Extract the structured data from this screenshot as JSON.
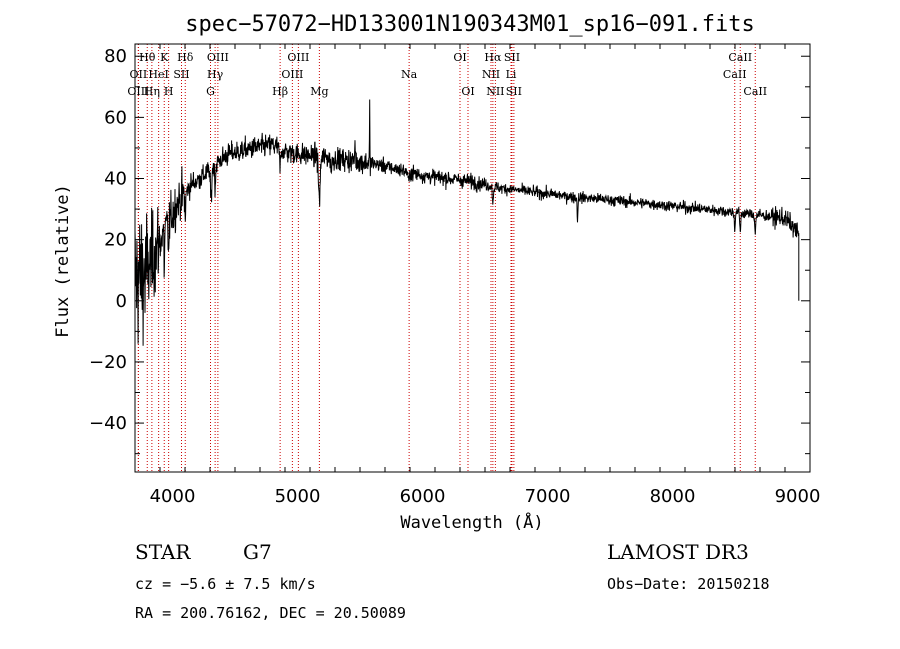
{
  "chart_data": {
    "type": "line",
    "title": "spec−57072−HD133001N190343M01_sp16−091.fits",
    "xlabel": "Wavelength (Å)",
    "ylabel": "Flux (relative)",
    "xlim": [
      3700,
      9100
    ],
    "ylim": [
      -56,
      84
    ],
    "xticks": [
      4000,
      5000,
      6000,
      7000,
      8000,
      9000
    ],
    "yticks": [
      -40,
      -20,
      0,
      20,
      40,
      60,
      80
    ],
    "ytick_labels": [
      "−40",
      "−20",
      "0",
      "20",
      "40",
      "60",
      "80"
    ],
    "spectrum_anchors": [
      [
        3700,
        8
      ],
      [
        3780,
        8
      ],
      [
        3850,
        15
      ],
      [
        3950,
        24
      ],
      [
        4050,
        33
      ],
      [
        4150,
        38
      ],
      [
        4250,
        41
      ],
      [
        4350,
        45
      ],
      [
        4450,
        48
      ],
      [
        4550,
        49
      ],
      [
        4650,
        50
      ],
      [
        4800,
        51
      ],
      [
        4900,
        49
      ],
      [
        5000,
        48
      ],
      [
        5200,
        47
      ],
      [
        5400,
        46
      ],
      [
        5600,
        45
      ],
      [
        5800,
        43
      ],
      [
        6000,
        41
      ],
      [
        6200,
        40
      ],
      [
        6400,
        39
      ],
      [
        6600,
        37
      ],
      [
        6800,
        36
      ],
      [
        7000,
        35
      ],
      [
        7200,
        34
      ],
      [
        7500,
        33
      ],
      [
        8000,
        31
      ],
      [
        8500,
        29
      ],
      [
        8900,
        27
      ],
      [
        9010,
        22
      ]
    ],
    "absorption_features": [
      [
        3934,
        12,
        4
      ],
      [
        3969,
        12,
        4
      ],
      [
        4102,
        8,
        6
      ],
      [
        4308,
        10,
        8
      ],
      [
        4341,
        7,
        6
      ],
      [
        4861,
        6,
        8
      ],
      [
        5175,
        14,
        10
      ],
      [
        5270,
        4,
        6
      ],
      [
        5890,
        4,
        6
      ],
      [
        6563,
        5,
        6
      ],
      [
        7240,
        7,
        5
      ],
      [
        8498,
        5,
        6
      ],
      [
        8542,
        6,
        6
      ],
      [
        8662,
        6,
        6
      ]
    ],
    "emission_features": [
      [
        5577,
        20,
        2
      ],
      [
        5460,
        8,
        3
      ]
    ],
    "spectral_lines": [
      {
        "name": "Hθ",
        "wavelength": 3798,
        "row": 0
      },
      {
        "name": "OII",
        "wavelength": 3727,
        "row": 1
      },
      {
        "name": "OIII",
        "wavelength": 3727,
        "row": 2
      },
      {
        "name": "Hη",
        "wavelength": 3835,
        "row": 2
      },
      {
        "name": "HeI",
        "wavelength": 3889,
        "row": 1
      },
      {
        "name": "K",
        "wavelength": 3934,
        "row": 0
      },
      {
        "name": "H",
        "wavelength": 3969,
        "row": 2
      },
      {
        "name": "SII",
        "wavelength": 4072,
        "row": 1
      },
      {
        "name": "Hδ",
        "wavelength": 4102,
        "row": 0
      },
      {
        "name": "OIII",
        "wavelength": 4363,
        "row": 0
      },
      {
        "name": "Hγ",
        "wavelength": 4341,
        "row": 1
      },
      {
        "name": "G",
        "wavelength": 4304,
        "row": 2
      },
      {
        "name": "Hβ",
        "wavelength": 4861,
        "row": 2
      },
      {
        "name": "OIII",
        "wavelength": 5007,
        "row": 0
      },
      {
        "name": "OIII",
        "wavelength": 4959,
        "row": 1
      },
      {
        "name": "Mg",
        "wavelength": 5175,
        "row": 2
      },
      {
        "name": "Na",
        "wavelength": 5893,
        "row": 1
      },
      {
        "name": "OI",
        "wavelength": 6300,
        "row": 0
      },
      {
        "name": "OI",
        "wavelength": 6364,
        "row": 2
      },
      {
        "name": "Hα",
        "wavelength": 6563,
        "row": 0
      },
      {
        "name": "SII",
        "wavelength": 6716,
        "row": 0
      },
      {
        "name": "NII",
        "wavelength": 6548,
        "row": 1
      },
      {
        "name": "Li",
        "wavelength": 6708,
        "row": 1
      },
      {
        "name": "NII",
        "wavelength": 6583,
        "row": 2
      },
      {
        "name": "SII",
        "wavelength": 6731,
        "row": 2
      },
      {
        "name": "CaII",
        "wavelength": 8542,
        "row": 0
      },
      {
        "name": "CaII",
        "wavelength": 8498,
        "row": 1
      },
      {
        "name": "CaII",
        "wavelength": 8662,
        "row": 2
      }
    ]
  },
  "info": {
    "object_class": "STAR",
    "subclass": "G7",
    "survey": "LAMOST DR3",
    "cz": "cz = −5.6 ± 7.5 km/s",
    "obs_date": "Obs−Date: 20150218",
    "coords": "RA = 200.76162, DEC =  20.50089"
  },
  "colors": {
    "line_marker": "#cc0000",
    "spectrum": "#000000",
    "axes": "#000000"
  }
}
